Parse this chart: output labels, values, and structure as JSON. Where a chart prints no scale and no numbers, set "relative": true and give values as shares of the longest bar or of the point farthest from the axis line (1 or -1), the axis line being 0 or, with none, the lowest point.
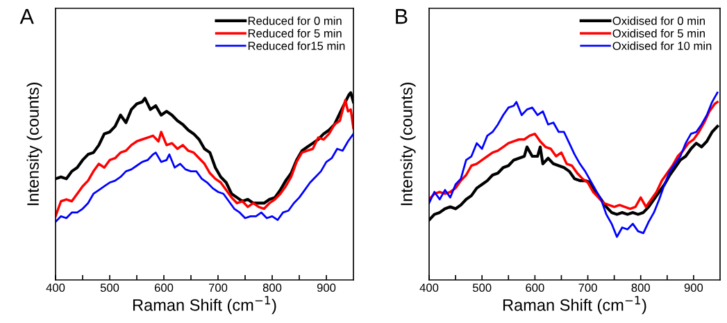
{
  "chart_data": [
    {
      "type": "line",
      "annotations": [
        "A"
      ],
      "xlabel": "Raman Shift (cm$^{−1}$)",
      "ylabel": "Intensity (counts)",
      "relative": true,
      "xlim": [
        400,
        950
      ],
      "xticks": [
        400,
        {
          "value": 450,
          "label": null
        },
        500,
        {
          "value": 550,
          "label": null
        },
        600,
        {
          "value": 650,
          "label": null
        },
        700,
        {
          "value": 750,
          "label": null
        },
        800,
        {
          "value": 850,
          "label": null
        },
        900
      ],
      "legend": "top right",
      "grid": false,
      "series": [
        {
          "name": "Reduced for 0 min",
          "color": "#000000",
          "x": [
            400,
            410,
            420,
            430,
            440,
            450,
            460,
            470,
            480,
            490,
            500,
            510,
            520,
            530,
            540,
            550,
            560,
            565,
            575,
            585,
            595,
            605,
            615,
            625,
            635,
            645,
            655,
            665,
            675,
            685,
            695,
            705,
            715,
            725,
            735,
            745,
            755,
            765,
            775,
            785,
            795,
            805,
            815,
            825,
            835,
            845,
            855,
            865,
            875,
            885,
            895,
            905,
            915,
            925,
            935,
            942,
            945,
            950
          ],
          "values": [
            0.54,
            0.55,
            0.54,
            0.58,
            0.6,
            0.64,
            0.67,
            0.68,
            0.72,
            0.78,
            0.79,
            0.82,
            0.88,
            0.84,
            0.91,
            0.94,
            0.95,
            0.97,
            0.91,
            0.93,
            0.88,
            0.9,
            0.88,
            0.85,
            0.83,
            0.8,
            0.78,
            0.75,
            0.7,
            0.68,
            0.6,
            0.55,
            0.52,
            0.46,
            0.44,
            0.42,
            0.43,
            0.41,
            0.41,
            0.41,
            0.43,
            0.44,
            0.48,
            0.53,
            0.57,
            0.64,
            0.69,
            0.71,
            0.73,
            0.75,
            0.78,
            0.8,
            0.83,
            0.89,
            0.95,
            0.99,
            1.0,
            0.95
          ]
        },
        {
          "name": "Reduced for 5 min",
          "color": "#ff0000",
          "x": [
            400,
            410,
            420,
            430,
            440,
            450,
            460,
            470,
            480,
            490,
            500,
            510,
            520,
            530,
            540,
            550,
            560,
            570,
            580,
            590,
            595,
            605,
            615,
            625,
            635,
            645,
            655,
            665,
            675,
            685,
            695,
            705,
            715,
            725,
            735,
            745,
            755,
            765,
            775,
            785,
            795,
            805,
            815,
            825,
            835,
            845,
            855,
            865,
            875,
            885,
            895,
            905,
            915,
            925,
            935,
            940,
            945,
            950
          ],
          "values": [
            0.34,
            0.42,
            0.43,
            0.42,
            0.46,
            0.5,
            0.53,
            0.58,
            0.62,
            0.6,
            0.64,
            0.65,
            0.68,
            0.69,
            0.72,
            0.74,
            0.75,
            0.76,
            0.77,
            0.74,
            0.79,
            0.72,
            0.73,
            0.7,
            0.72,
            0.69,
            0.68,
            0.65,
            0.62,
            0.57,
            0.54,
            0.52,
            0.48,
            0.44,
            0.41,
            0.42,
            0.39,
            0.41,
            0.39,
            0.38,
            0.41,
            0.43,
            0.46,
            0.5,
            0.55,
            0.63,
            0.68,
            0.69,
            0.7,
            0.76,
            0.75,
            0.78,
            0.83,
            0.85,
            0.96,
            0.9,
            0.91,
            0.81
          ]
        },
        {
          "name": "Reduced for15 min",
          "color": "#0000ff",
          "x": [
            400,
            410,
            420,
            430,
            440,
            450,
            460,
            470,
            480,
            490,
            500,
            510,
            520,
            530,
            540,
            550,
            560,
            570,
            580,
            585,
            595,
            605,
            610,
            620,
            630,
            640,
            650,
            660,
            670,
            680,
            690,
            700,
            710,
            720,
            730,
            740,
            750,
            760,
            770,
            780,
            790,
            800,
            810,
            820,
            830,
            840,
            850,
            860,
            870,
            880,
            890,
            900,
            910,
            920,
            930,
            940,
            950
          ],
          "values": [
            0.31,
            0.34,
            0.33,
            0.36,
            0.36,
            0.38,
            0.41,
            0.46,
            0.48,
            0.5,
            0.52,
            0.53,
            0.55,
            0.58,
            0.59,
            0.61,
            0.63,
            0.64,
            0.67,
            0.68,
            0.63,
            0.64,
            0.67,
            0.6,
            0.62,
            0.59,
            0.58,
            0.58,
            0.54,
            0.52,
            0.49,
            0.47,
            0.46,
            0.42,
            0.38,
            0.36,
            0.33,
            0.34,
            0.34,
            0.36,
            0.33,
            0.34,
            0.32,
            0.36,
            0.37,
            0.41,
            0.44,
            0.48,
            0.52,
            0.55,
            0.58,
            0.63,
            0.65,
            0.7,
            0.69,
            0.74,
            0.78
          ]
        }
      ]
    },
    {
      "type": "line",
      "annotations": [
        "B"
      ],
      "xlabel": "Raman Shift (cm$^{−1}$)",
      "ylabel": "Intensity (counts)",
      "relative": true,
      "xlim": [
        400,
        950
      ],
      "xticks": [
        400,
        {
          "value": 450,
          "label": null
        },
        500,
        {
          "value": 550,
          "label": null
        },
        600,
        {
          "value": 650,
          "label": null
        },
        700,
        {
          "value": 750,
          "label": null
        },
        800,
        {
          "value": 850,
          "label": null
        },
        900
      ],
      "legend": "top right",
      "grid": false,
      "series": [
        {
          "name": "Oxidised for 0 min",
          "color": "#000000",
          "x": [
            400,
            410,
            420,
            430,
            440,
            450,
            460,
            470,
            480,
            490,
            500,
            510,
            520,
            530,
            540,
            550,
            560,
            570,
            580,
            585,
            595,
            605,
            610,
            615,
            625,
            635,
            645,
            655,
            665,
            675,
            685,
            695,
            705,
            715,
            725,
            735,
            745,
            755,
            765,
            775,
            785,
            795,
            805,
            815,
            825,
            835,
            845,
            855,
            865,
            875,
            885,
            895,
            905,
            915,
            925,
            935,
            945
          ],
          "values": [
            0.32,
            0.35,
            0.36,
            0.38,
            0.39,
            0.38,
            0.4,
            0.43,
            0.45,
            0.49,
            0.51,
            0.53,
            0.56,
            0.57,
            0.6,
            0.61,
            0.64,
            0.65,
            0.66,
            0.71,
            0.66,
            0.66,
            0.71,
            0.62,
            0.65,
            0.62,
            0.61,
            0.6,
            0.58,
            0.54,
            0.53,
            0.53,
            0.52,
            0.47,
            0.43,
            0.39,
            0.36,
            0.35,
            0.36,
            0.35,
            0.36,
            0.35,
            0.36,
            0.39,
            0.43,
            0.47,
            0.51,
            0.56,
            0.6,
            0.64,
            0.66,
            0.7,
            0.73,
            0.71,
            0.74,
            0.79,
            0.82
          ]
        },
        {
          "name": "Oxidised for 5 min",
          "color": "#ff0000",
          "x": [
            400,
            410,
            420,
            430,
            440,
            450,
            460,
            470,
            480,
            490,
            500,
            510,
            520,
            530,
            540,
            550,
            560,
            570,
            580,
            590,
            600,
            610,
            620,
            630,
            640,
            650,
            660,
            670,
            680,
            690,
            700,
            710,
            720,
            730,
            740,
            750,
            760,
            770,
            780,
            790,
            800,
            810,
            820,
            830,
            840,
            850,
            860,
            870,
            880,
            890,
            900,
            910,
            920,
            930,
            940,
            945
          ],
          "values": [
            0.43,
            0.46,
            0.47,
            0.46,
            0.47,
            0.49,
            0.53,
            0.56,
            0.61,
            0.62,
            0.64,
            0.66,
            0.68,
            0.69,
            0.71,
            0.73,
            0.74,
            0.75,
            0.75,
            0.77,
            0.78,
            0.74,
            0.71,
            0.7,
            0.66,
            0.68,
            0.62,
            0.61,
            0.57,
            0.54,
            0.52,
            0.47,
            0.44,
            0.41,
            0.4,
            0.39,
            0.4,
            0.39,
            0.38,
            0.39,
            0.44,
            0.39,
            0.43,
            0.47,
            0.53,
            0.57,
            0.61,
            0.66,
            0.69,
            0.73,
            0.75,
            0.79,
            0.84,
            0.9,
            0.94,
            0.95
          ]
        },
        {
          "name": "Oxidised for 10 min",
          "color": "#0000ff",
          "x": [
            400,
            410,
            420,
            430,
            440,
            450,
            460,
            470,
            480,
            490,
            500,
            510,
            520,
            530,
            540,
            550,
            560,
            565,
            575,
            585,
            595,
            605,
            615,
            625,
            635,
            645,
            655,
            665,
            675,
            685,
            695,
            705,
            715,
            725,
            735,
            745,
            755,
            765,
            775,
            785,
            795,
            805,
            815,
            825,
            835,
            845,
            855,
            865,
            875,
            885,
            895,
            905,
            915,
            925,
            935,
            945
          ],
          "values": [
            0.41,
            0.47,
            0.43,
            0.48,
            0.44,
            0.51,
            0.54,
            0.64,
            0.66,
            0.73,
            0.7,
            0.77,
            0.79,
            0.83,
            0.88,
            0.92,
            0.93,
            0.95,
            0.88,
            0.91,
            0.92,
            0.88,
            0.9,
            0.83,
            0.84,
            0.79,
            0.79,
            0.73,
            0.67,
            0.62,
            0.58,
            0.53,
            0.48,
            0.43,
            0.35,
            0.3,
            0.23,
            0.28,
            0.27,
            0.3,
            0.26,
            0.25,
            0.31,
            0.36,
            0.43,
            0.51,
            0.58,
            0.62,
            0.66,
            0.73,
            0.78,
            0.79,
            0.83,
            0.88,
            0.95,
            1.0
          ]
        }
      ]
    }
  ]
}
